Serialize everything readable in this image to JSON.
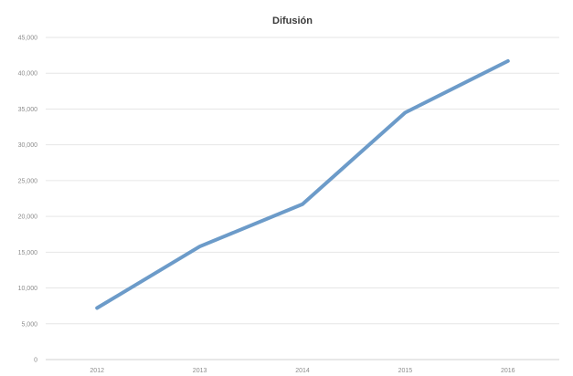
{
  "chart_data": {
    "type": "line",
    "title": "Difusión",
    "categories": [
      "2012",
      "2013",
      "2014",
      "2015",
      "2016"
    ],
    "series": [
      {
        "values": [
          7200,
          15800,
          21700,
          34500,
          41700
        ],
        "color": "#6c9bc9"
      }
    ],
    "ylim": [
      0,
      45000
    ],
    "yticks": [
      0,
      5000,
      10000,
      15000,
      20000,
      25000,
      30000,
      35000,
      40000,
      45000
    ],
    "ytick_labels": [
      "0",
      "5,000",
      "10,000",
      "15,000",
      "20,000",
      "25,000",
      "30,000",
      "35,000",
      "40,000",
      "45,000"
    ],
    "grid": true,
    "legend": "none"
  }
}
